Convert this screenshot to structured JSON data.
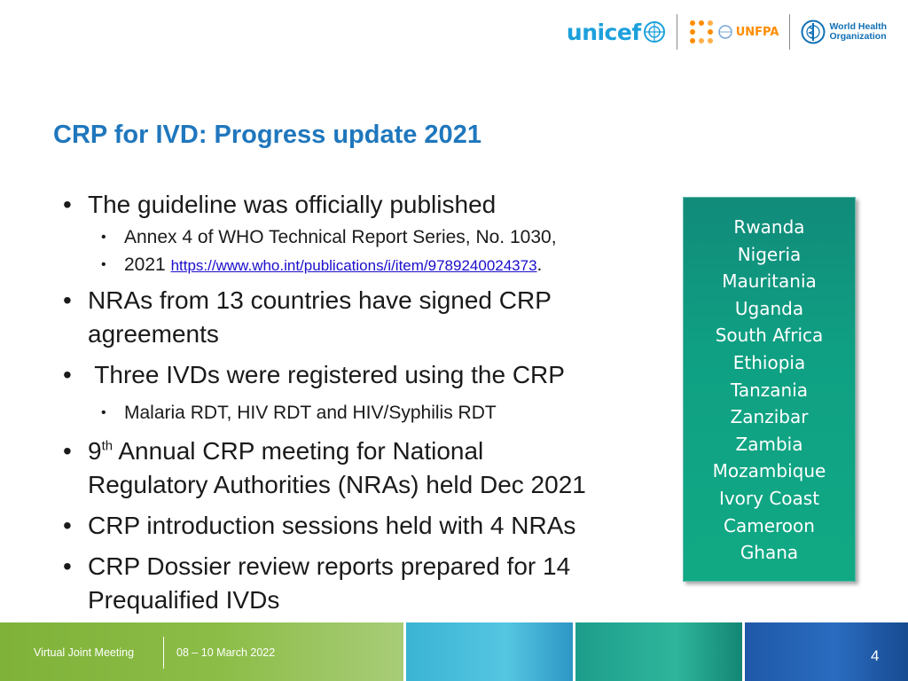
{
  "logos": {
    "unicef": "unicef",
    "unfpa": "UNFPA",
    "who_line1": "World Health",
    "who_line2": "Organization"
  },
  "title": "CRP for IVD: Progress update 2021",
  "bullets": {
    "published": "The guideline was officially published",
    "annex_line1": "Annex 4 of WHO Technical Report Series, No. 1030,",
    "annex_year": "2021",
    "annex_url": "https://www.who.int/publications/i/item/9789240024373",
    "annex_period": ".",
    "nras_line1": "NRAs from 13 countries have signed CRP",
    "nras_line2": "agreements",
    "ivds": " Three IVDs were registered using the CRP",
    "rdts": "Malaria RDT, HIV RDT and HIV/Syphilis RDT",
    "meeting_num": "9",
    "meeting_sup": "th",
    "meeting_line1_rest": " Annual CRP meeting for National",
    "meeting_line2": "Regulatory Authorities (NRAs) held Dec 2021",
    "intro": "CRP introduction sessions held with 4 NRAs",
    "dossier_line1": "CRP Dossier review reports prepared for 14",
    "dossier_line2": "Prequalified IVDs"
  },
  "countries": [
    "Rwanda",
    "Nigeria",
    "Mauritania",
    "Uganda",
    "South Africa",
    "Ethiopia",
    "Tanzania",
    "Zanzibar",
    "Zambia",
    "Mozambique",
    "Ivory Coast",
    "Cameroon",
    "Ghana"
  ],
  "footer": {
    "meeting": "Virtual Joint Meeting",
    "dates": "08 – 10 March 2022",
    "page": "4"
  },
  "colors": {
    "title": "#1f77bd",
    "country_box": "#11a984",
    "footer_green": "#8cbd47",
    "footer_cyan": "#55c6e2",
    "footer_teal": "#2fb59c",
    "footer_blue": "#2a6cc0"
  },
  "icons": [
    "unicef-emblem-icon",
    "unfpa-dots-icon",
    "un-emblem-icon",
    "who-emblem-icon"
  ]
}
